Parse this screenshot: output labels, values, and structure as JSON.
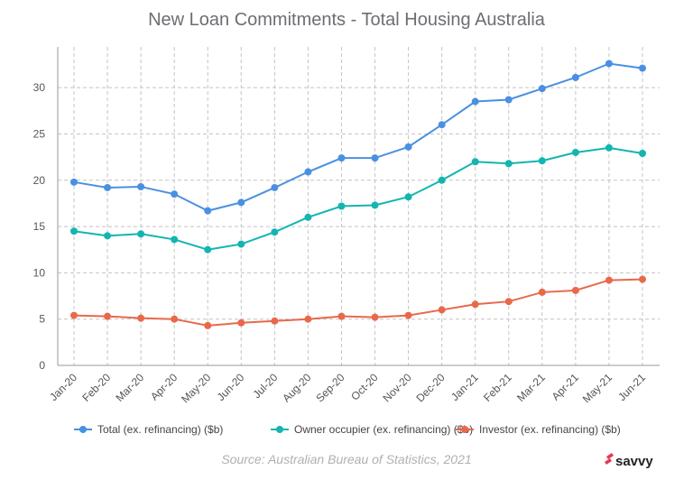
{
  "chart_data": {
    "type": "line",
    "title": "New Loan Commitments - Total Housing Australia",
    "source": "Source: Australian Bureau of Statistics, 2021",
    "logo": "savvy",
    "categories": [
      "Jan-20",
      "Feb-20",
      "Mar-20",
      "Apr-20",
      "May-20",
      "Jun-20",
      "Jul-20",
      "Aug-20",
      "Sep-20",
      "Oct-20",
      "Nov-20",
      "Dec-20",
      "Jan-21",
      "Feb-21",
      "Mar-21",
      "Apr-21",
      "May-21",
      "Jun-21"
    ],
    "yticks": [
      0,
      5,
      10,
      15,
      20,
      25,
      30
    ],
    "ylim": [
      0,
      34.4
    ],
    "grid": true,
    "legend_position": "bottom",
    "series": [
      {
        "name": "Total (ex. refinancing) ($b)",
        "color": "#4a90e2",
        "values": [
          19.8,
          19.2,
          19.3,
          18.5,
          16.7,
          17.6,
          19.2,
          20.9,
          22.4,
          22.4,
          23.6,
          26.0,
          28.5,
          28.7,
          29.9,
          31.1,
          32.6,
          32.1
        ]
      },
      {
        "name": "Owner occupier (ex. refinancing) ($b)",
        "color": "#13b5b1",
        "values": [
          14.5,
          14.0,
          14.2,
          13.6,
          12.5,
          13.1,
          14.4,
          16.0,
          17.2,
          17.3,
          18.2,
          20.0,
          22.0,
          21.8,
          22.1,
          23.0,
          23.5,
          22.9
        ]
      },
      {
        "name": "Investor (ex. refinancing) ($b)",
        "color": "#e8694a",
        "values": [
          5.4,
          5.3,
          5.1,
          5.0,
          4.3,
          4.6,
          4.8,
          5.0,
          5.3,
          5.2,
          5.4,
          6.0,
          6.6,
          6.9,
          7.9,
          8.1,
          9.2,
          9.3
        ]
      }
    ]
  }
}
